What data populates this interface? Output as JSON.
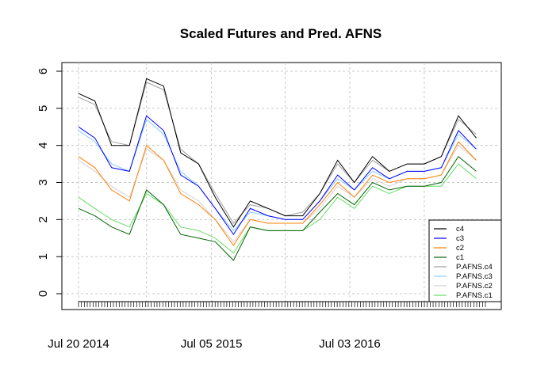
{
  "chart_data": {
    "type": "line",
    "title": "Scaled Futures and Pred. AFNS",
    "xlabel": "",
    "ylabel": "",
    "ylim": [
      0,
      6
    ],
    "y_ticks": [
      0,
      1,
      2,
      3,
      4,
      5,
      6
    ],
    "x_tick_labels": [
      "Jul 20 2014",
      "Jul 05 2015",
      "Jul 03 2016"
    ],
    "x_range": [
      "2014-07-20",
      "2017-06-25"
    ],
    "grid": true,
    "legend_position": "bottom-right",
    "x_dates": [
      "2014-07-20",
      "2014-09-01",
      "2014-10-15",
      "2014-12-01",
      "2015-01-15",
      "2015-03-01",
      "2015-04-15",
      "2015-06-01",
      "2015-07-15",
      "2015-09-01",
      "2015-10-15",
      "2015-12-01",
      "2016-01-15",
      "2016-03-01",
      "2016-04-15",
      "2016-06-01",
      "2016-07-15",
      "2016-09-01",
      "2016-10-15",
      "2016-12-01",
      "2017-01-15",
      "2017-03-01",
      "2017-04-15",
      "2017-06-01"
    ],
    "series": [
      {
        "name": "c4",
        "color": "#000000",
        "values": [
          5.4,
          5.2,
          4.0,
          4.0,
          5.8,
          5.6,
          3.8,
          3.5,
          2.6,
          1.8,
          2.5,
          2.3,
          2.1,
          2.1,
          2.7,
          3.6,
          3.0,
          3.7,
          3.3,
          3.5,
          3.5,
          3.7,
          4.8,
          4.2
        ]
      },
      {
        "name": "c3",
        "color": "#0000ff",
        "values": [
          4.5,
          4.2,
          3.4,
          3.3,
          4.8,
          4.4,
          3.2,
          2.9,
          2.3,
          1.6,
          2.3,
          2.1,
          2.0,
          2.0,
          2.5,
          3.2,
          2.8,
          3.4,
          3.1,
          3.3,
          3.3,
          3.4,
          4.4,
          3.9
        ]
      },
      {
        "name": "c2",
        "color": "#ff7f00",
        "values": [
          3.7,
          3.4,
          2.8,
          2.5,
          4.0,
          3.6,
          2.7,
          2.4,
          2.0,
          1.3,
          2.0,
          1.9,
          1.9,
          1.9,
          2.4,
          3.0,
          2.6,
          3.2,
          3.0,
          3.1,
          3.1,
          3.2,
          4.1,
          3.6
        ]
      },
      {
        "name": "c1",
        "color": "#006400",
        "values": [
          2.3,
          2.1,
          1.8,
          1.6,
          2.8,
          2.4,
          1.6,
          1.5,
          1.4,
          0.9,
          1.8,
          1.7,
          1.7,
          1.7,
          2.2,
          2.7,
          2.4,
          3.0,
          2.8,
          2.9,
          2.9,
          3.0,
          3.7,
          3.3
        ]
      },
      {
        "name": "P.AFNS.c4",
        "color": "#a0a0a0",
        "values": [
          5.3,
          5.1,
          4.1,
          4.0,
          5.7,
          5.5,
          3.9,
          3.5,
          2.7,
          1.9,
          2.4,
          2.3,
          2.1,
          2.2,
          2.7,
          3.5,
          3.0,
          3.6,
          3.3,
          3.5,
          3.5,
          3.7,
          4.7,
          4.3
        ]
      },
      {
        "name": "P.AFNS.c3",
        "color": "#87cefa",
        "values": [
          4.4,
          4.1,
          3.5,
          3.3,
          4.7,
          4.3,
          3.3,
          2.9,
          2.3,
          1.7,
          2.2,
          2.1,
          2.0,
          2.0,
          2.5,
          3.1,
          2.8,
          3.3,
          3.1,
          3.3,
          3.3,
          3.4,
          4.3,
          3.9
        ]
      },
      {
        "name": "P.AFNS.c2",
        "color": "#d3d3d3",
        "values": [
          3.6,
          3.3,
          2.9,
          2.6,
          3.9,
          3.6,
          2.8,
          2.5,
          2.0,
          1.4,
          2.0,
          1.9,
          1.9,
          1.9,
          2.3,
          2.9,
          2.6,
          3.1,
          2.9,
          3.1,
          3.1,
          3.2,
          4.0,
          3.6
        ]
      },
      {
        "name": "P.AFNS.c1",
        "color": "#66dd66",
        "values": [
          2.6,
          2.3,
          2.0,
          1.8,
          2.7,
          2.4,
          1.8,
          1.7,
          1.5,
          1.1,
          1.8,
          1.7,
          1.7,
          1.7,
          2.0,
          2.6,
          2.3,
          2.9,
          2.7,
          2.9,
          2.9,
          2.9,
          3.5,
          3.1
        ]
      }
    ]
  }
}
